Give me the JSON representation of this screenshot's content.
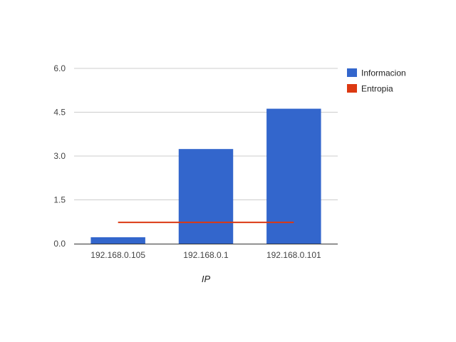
{
  "chart_data": {
    "type": "bar",
    "categories": [
      "192.168.0.105",
      "192.168.0.1",
      "192.168.0.101"
    ],
    "series": [
      {
        "name": "Informacion",
        "kind": "bar",
        "color": "#3366cc",
        "values": [
          0.22,
          3.24,
          4.62
        ]
      },
      {
        "name": "Entropia",
        "kind": "line",
        "color": "#dc3912",
        "values": [
          0.73,
          0.73,
          0.73
        ]
      }
    ],
    "xlabel": "IP",
    "ylabel": "",
    "ylim": [
      0,
      6
    ],
    "yticks": [
      "0.0",
      "1.5",
      "3.0",
      "4.5",
      "6.0"
    ],
    "grid": true,
    "legend_position": "right"
  }
}
